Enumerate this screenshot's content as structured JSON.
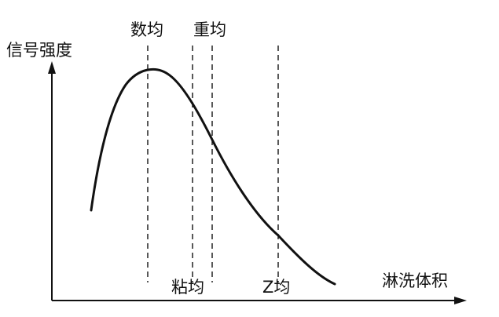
{
  "axes": {
    "y_label": "信号强度",
    "x_label": "淋洗体积"
  },
  "markers": {
    "number_average": "数均",
    "weight_average": "重均",
    "viscosity_average": "粘均",
    "z_average": "Z均"
  },
  "colors": {
    "ink": "#111111",
    "background": "#ffffff"
  }
}
